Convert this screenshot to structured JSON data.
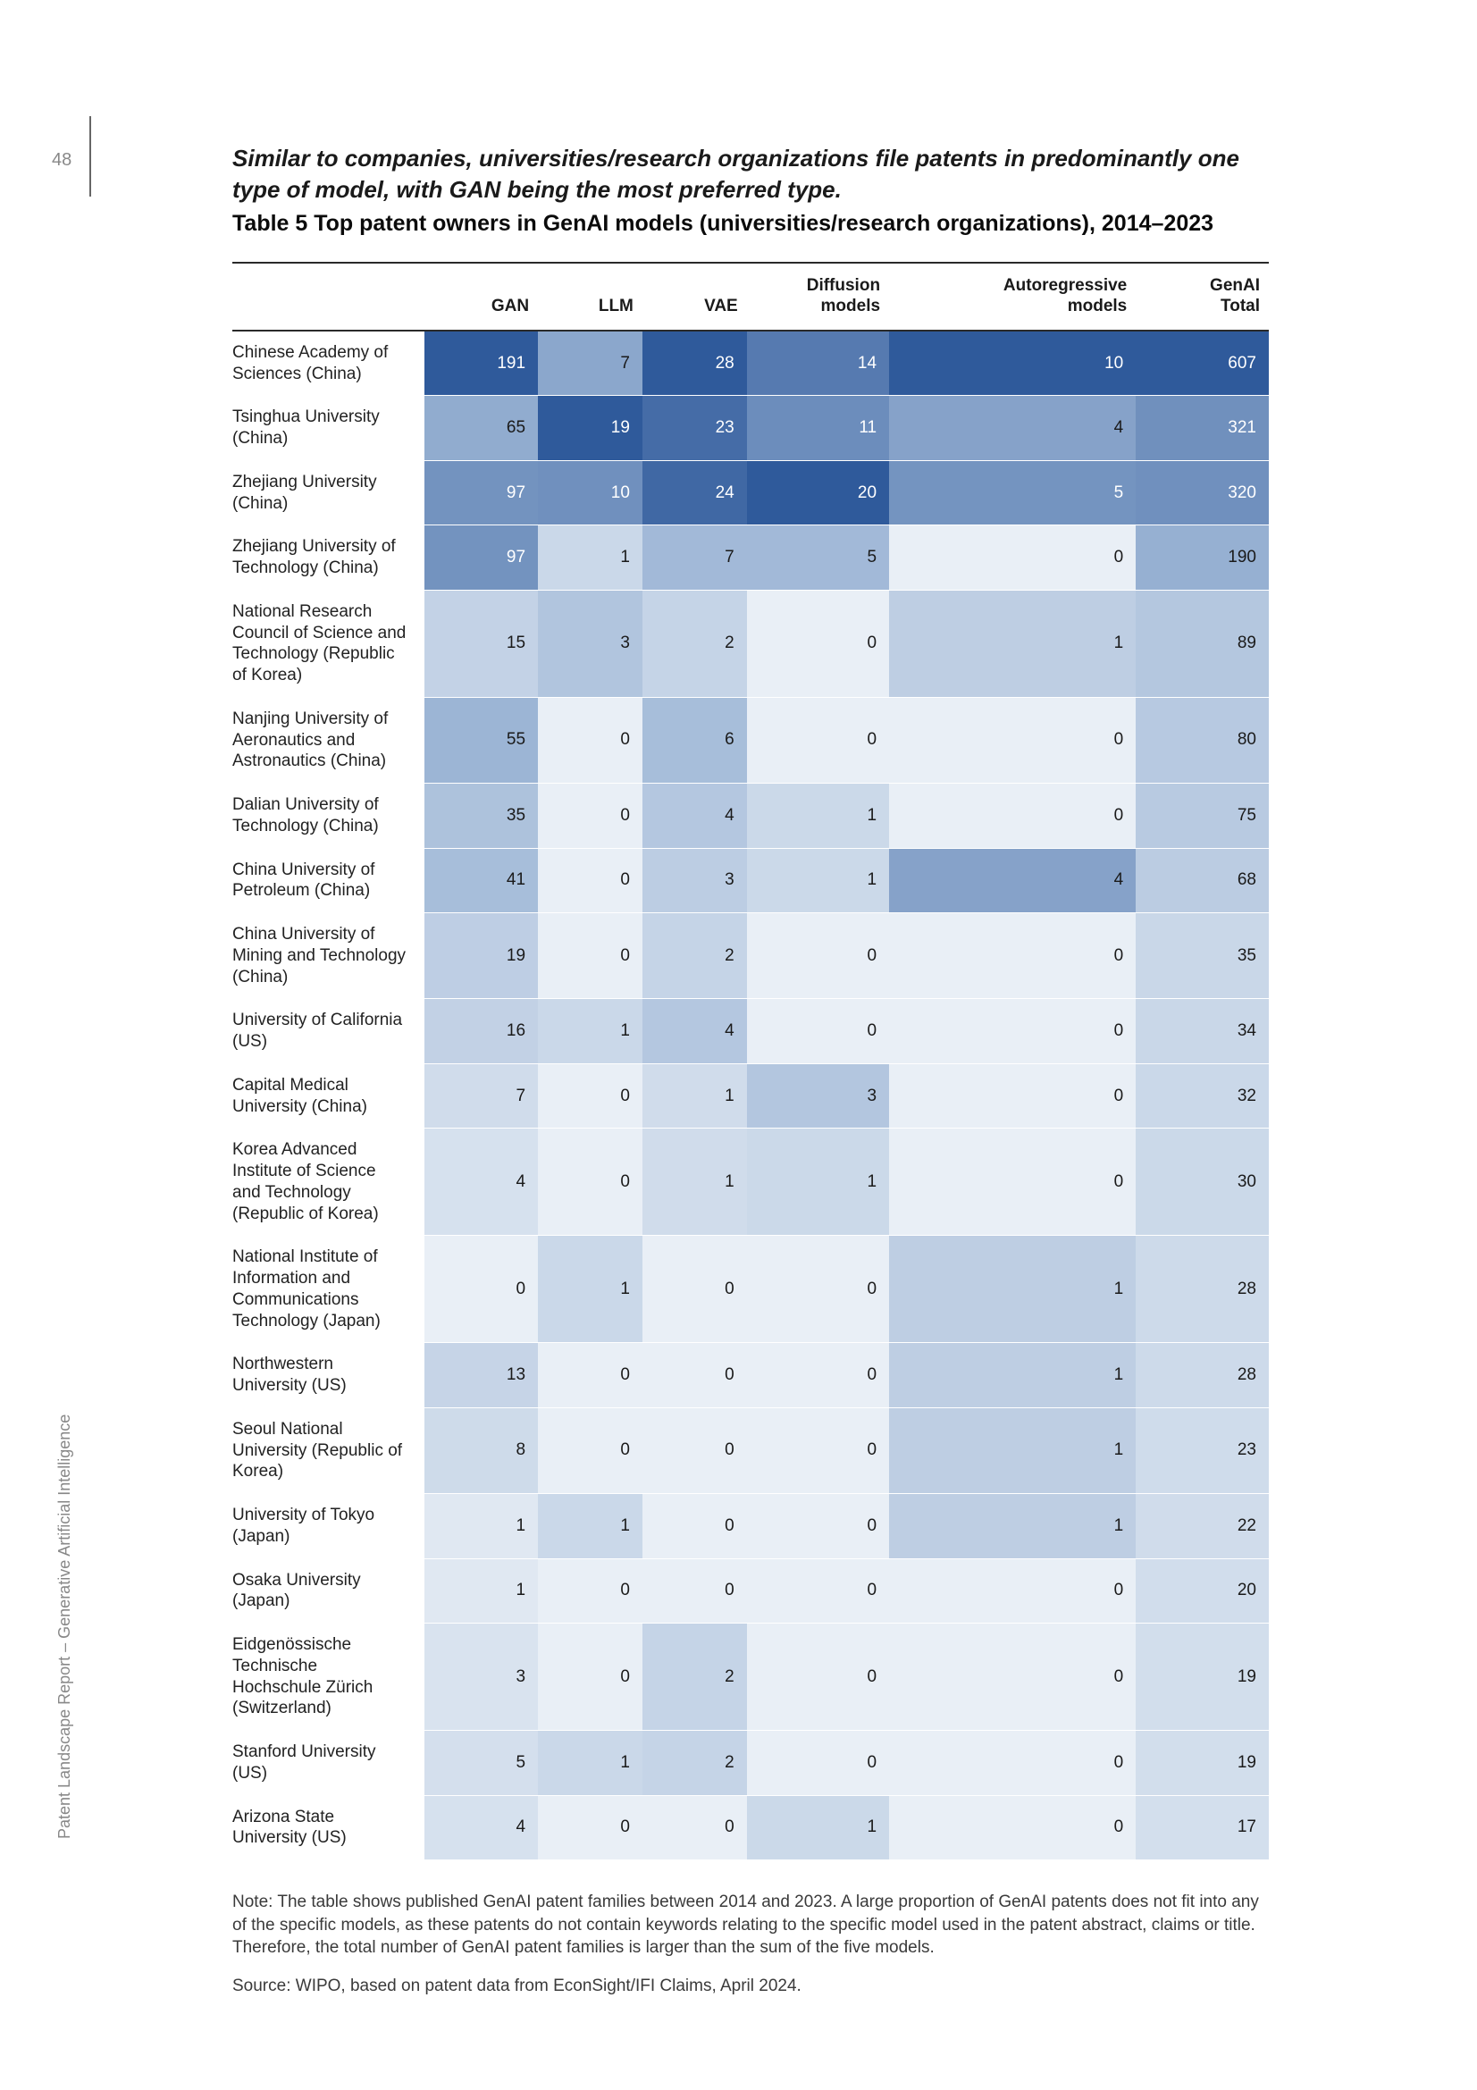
{
  "page_number": "48",
  "side_label": "Patent Landscape Report – Generative Artificial Intelligence",
  "intro_text": "Similar to companies, universities/research organizations file patents in predominantly one type of model, with GAN being the most preferred type.",
  "table_title": "Table 5 Top patent owners in GenAI models (universities/research organizations), 2014–2023",
  "columns": [
    {
      "key": "gan",
      "label": "GAN"
    },
    {
      "key": "llm",
      "label": "LLM"
    },
    {
      "key": "vae",
      "label": "VAE"
    },
    {
      "key": "diff",
      "label": "Diffusion\nmodels"
    },
    {
      "key": "ar",
      "label": "Autoregressive\nmodels"
    },
    {
      "key": "total",
      "label": "GenAI\nTotal"
    }
  ],
  "heat_scale": {
    "min_color": "#e9eff6",
    "mid_color": "#9db6d6",
    "max_color": "#2f5a9b",
    "text_dark": "#1a1a1a",
    "text_light": "#ffffff"
  },
  "column_max": {
    "gan": 191,
    "llm": 19,
    "vae": 28,
    "diff": 20,
    "ar": 10,
    "total": 607
  },
  "rows": [
    {
      "label": "Chinese Academy of Sciences (China)",
      "gan": 191,
      "llm": 7,
      "vae": 28,
      "diff": 14,
      "ar": 10,
      "total": 607
    },
    {
      "label": "Tsinghua University (China)",
      "gan": 65,
      "llm": 19,
      "vae": 23,
      "diff": 11,
      "ar": 4,
      "total": 321
    },
    {
      "label": "Zhejiang University (China)",
      "gan": 97,
      "llm": 10,
      "vae": 24,
      "diff": 20,
      "ar": 5,
      "total": 320
    },
    {
      "label": "Zhejiang University of Technology (China)",
      "gan": 97,
      "llm": 1,
      "vae": 7,
      "diff": 5,
      "ar": 0,
      "total": 190
    },
    {
      "label": "National Research Council of Science and Technology (Republic of Korea)",
      "gan": 15,
      "llm": 3,
      "vae": 2,
      "diff": 0,
      "ar": 1,
      "total": 89
    },
    {
      "label": "Nanjing University of Aeronautics and Astronautics (China)",
      "gan": 55,
      "llm": 0,
      "vae": 6,
      "diff": 0,
      "ar": 0,
      "total": 80
    },
    {
      "label": "Dalian University of Technology (China)",
      "gan": 35,
      "llm": 0,
      "vae": 4,
      "diff": 1,
      "ar": 0,
      "total": 75
    },
    {
      "label": "China University of Petroleum (China)",
      "gan": 41,
      "llm": 0,
      "vae": 3,
      "diff": 1,
      "ar": 4,
      "total": 68
    },
    {
      "label": "China University of Mining and Technology (China)",
      "gan": 19,
      "llm": 0,
      "vae": 2,
      "diff": 0,
      "ar": 0,
      "total": 35
    },
    {
      "label": "University of California (US)",
      "gan": 16,
      "llm": 1,
      "vae": 4,
      "diff": 0,
      "ar": 0,
      "total": 34
    },
    {
      "label": "Capital Medical University (China)",
      "gan": 7,
      "llm": 0,
      "vae": 1,
      "diff": 3,
      "ar": 0,
      "total": 32
    },
    {
      "label": "Korea Advanced Institute of Science and Technology (Republic of Korea)",
      "gan": 4,
      "llm": 0,
      "vae": 1,
      "diff": 1,
      "ar": 0,
      "total": 30
    },
    {
      "label": "National Institute of Information and Communications Technology (Japan)",
      "gan": 0,
      "llm": 1,
      "vae": 0,
      "diff": 0,
      "ar": 1,
      "total": 28
    },
    {
      "label": "Northwestern University (US)",
      "gan": 13,
      "llm": 0,
      "vae": 0,
      "diff": 0,
      "ar": 1,
      "total": 28
    },
    {
      "label": "Seoul National University (Republic of Korea)",
      "gan": 8,
      "llm": 0,
      "vae": 0,
      "diff": 0,
      "ar": 1,
      "total": 23
    },
    {
      "label": "University of Tokyo (Japan)",
      "gan": 1,
      "llm": 1,
      "vae": 0,
      "diff": 0,
      "ar": 1,
      "total": 22
    },
    {
      "label": "Osaka University (Japan)",
      "gan": 1,
      "llm": 0,
      "vae": 0,
      "diff": 0,
      "ar": 0,
      "total": 20
    },
    {
      "label": "Eidgenössische Technische Hochschule Zürich (Switzerland)",
      "gan": 3,
      "llm": 0,
      "vae": 2,
      "diff": 0,
      "ar": 0,
      "total": 19
    },
    {
      "label": "Stanford University (US)",
      "gan": 5,
      "llm": 1,
      "vae": 2,
      "diff": 0,
      "ar": 0,
      "total": 19
    },
    {
      "label": "Arizona State University (US)",
      "gan": 4,
      "llm": 0,
      "vae": 0,
      "diff": 1,
      "ar": 0,
      "total": 17
    }
  ],
  "note": "Note: The table shows published GenAI patent families between 2014 and 2023. A large proportion of GenAI patents does not fit into any of the specific models, as these patents do not contain keywords relating to the specific model used in the patent abstract, claims or title. Therefore, the total number of GenAI patent families is larger than the sum of the five models.",
  "source": "Source: WIPO, based on patent data from EconSight/IFI Claims, April 2024."
}
